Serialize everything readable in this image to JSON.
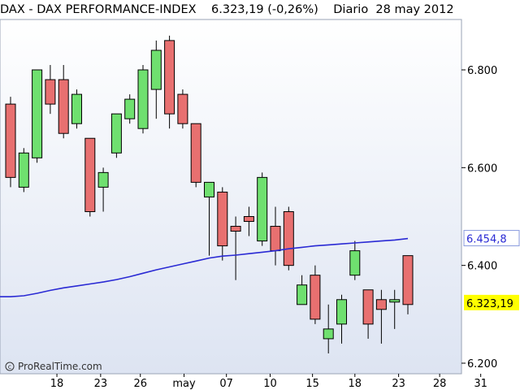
{
  "header": {
    "instrument": "DAX - DAX PERFORMANCE-INDEX",
    "last_change": "6.323,19 (-0,26%)",
    "period": "Diario",
    "date": "28 may 2012"
  },
  "colors": {
    "up": "#6fe06f",
    "down": "#e87070",
    "ma_line": "#2a2ad4",
    "ma_label_border": "#8899dd",
    "last_label_bg": "#ffff00"
  },
  "watermark": "ProRealTime.com",
  "chart_data": {
    "type": "candlestick",
    "y_ticks": [
      {
        "value": 6200,
        "label": "6.200"
      },
      {
        "value": 6400,
        "label": "6.400"
      },
      {
        "value": 6600,
        "label": "6.600"
      },
      {
        "value": 6800,
        "label": "6.800"
      }
    ],
    "ylim": [
      6180,
      6890
    ],
    "x_ticks": [
      "18",
      "23",
      "26",
      "may",
      "07",
      "10",
      "15",
      "18",
      "23",
      "28",
      "31"
    ],
    "x_tick_index": [
      3.5,
      6.8,
      9.8,
      13.1,
      16.3,
      19.6,
      22.8,
      26.0,
      29.3,
      32.4,
      35.5
    ],
    "candles": [
      {
        "o": 6730,
        "h": 6745,
        "l": 6560,
        "c": 6580
      },
      {
        "o": 6560,
        "h": 6640,
        "l": 6550,
        "c": 6630
      },
      {
        "o": 6620,
        "h": 6800,
        "l": 6610,
        "c": 6800
      },
      {
        "o": 6780,
        "h": 6810,
        "l": 6710,
        "c": 6730
      },
      {
        "o": 6780,
        "h": 6810,
        "l": 6660,
        "c": 6670
      },
      {
        "o": 6690,
        "h": 6760,
        "l": 6680,
        "c": 6750
      },
      {
        "o": 6660,
        "h": 6660,
        "l": 6500,
        "c": 6510
      },
      {
        "o": 6560,
        "h": 6600,
        "l": 6510,
        "c": 6590
      },
      {
        "o": 6630,
        "h": 6710,
        "l": 6620,
        "c": 6710
      },
      {
        "o": 6700,
        "h": 6750,
        "l": 6690,
        "c": 6740
      },
      {
        "o": 6680,
        "h": 6810,
        "l": 6670,
        "c": 6800
      },
      {
        "o": 6760,
        "h": 6860,
        "l": 6700,
        "c": 6840
      },
      {
        "o": 6860,
        "h": 6870,
        "l": 6680,
        "c": 6710
      },
      {
        "o": 6750,
        "h": 6760,
        "l": 6680,
        "c": 6690
      },
      {
        "o": 6690,
        "h": 6690,
        "l": 6560,
        "c": 6570
      },
      {
        "o": 6540,
        "h": 6570,
        "l": 6420,
        "c": 6570
      },
      {
        "o": 6550,
        "h": 6560,
        "l": 6410,
        "c": 6440
      },
      {
        "o": 6480,
        "h": 6500,
        "l": 6370,
        "c": 6470
      },
      {
        "o": 6500,
        "h": 6520,
        "l": 6460,
        "c": 6490
      },
      {
        "o": 6450,
        "h": 6590,
        "l": 6440,
        "c": 6580
      },
      {
        "o": 6480,
        "h": 6520,
        "l": 6400,
        "c": 6430
      },
      {
        "o": 6510,
        "h": 6520,
        "l": 6390,
        "c": 6400
      },
      {
        "o": 6320,
        "h": 6380,
        "l": 6320,
        "c": 6360
      },
      {
        "o": 6380,
        "h": 6400,
        "l": 6280,
        "c": 6290
      },
      {
        "o": 6250,
        "h": 6320,
        "l": 6220,
        "c": 6270
      },
      {
        "o": 6280,
        "h": 6340,
        "l": 6240,
        "c": 6330
      },
      {
        "o": 6380,
        "h": 6450,
        "l": 6370,
        "c": 6430
      },
      {
        "o": 6350,
        "h": 6350,
        "l": 6250,
        "c": 6280
      },
      {
        "o": 6330,
        "h": 6350,
        "l": 6240,
        "c": 6310
      },
      {
        "o": 6330,
        "h": 6350,
        "l": 6270,
        "c": 6330
      },
      {
        "o": 6420,
        "h": 6420,
        "l": 6300,
        "c": 6320
      }
    ],
    "moving_average": {
      "values": [
        6336,
        6338,
        6343,
        6349,
        6354,
        6358,
        6362,
        6366,
        6371,
        6377,
        6384,
        6391,
        6397,
        6403,
        6409,
        6415,
        6419,
        6421,
        6424,
        6427,
        6430,
        6434,
        6437,
        6440,
        6442,
        6444,
        6446,
        6448,
        6450,
        6452,
        6455
      ],
      "label": "6.454,8"
    },
    "last_price_label": "6.323,19",
    "last_price": 6323.19
  }
}
